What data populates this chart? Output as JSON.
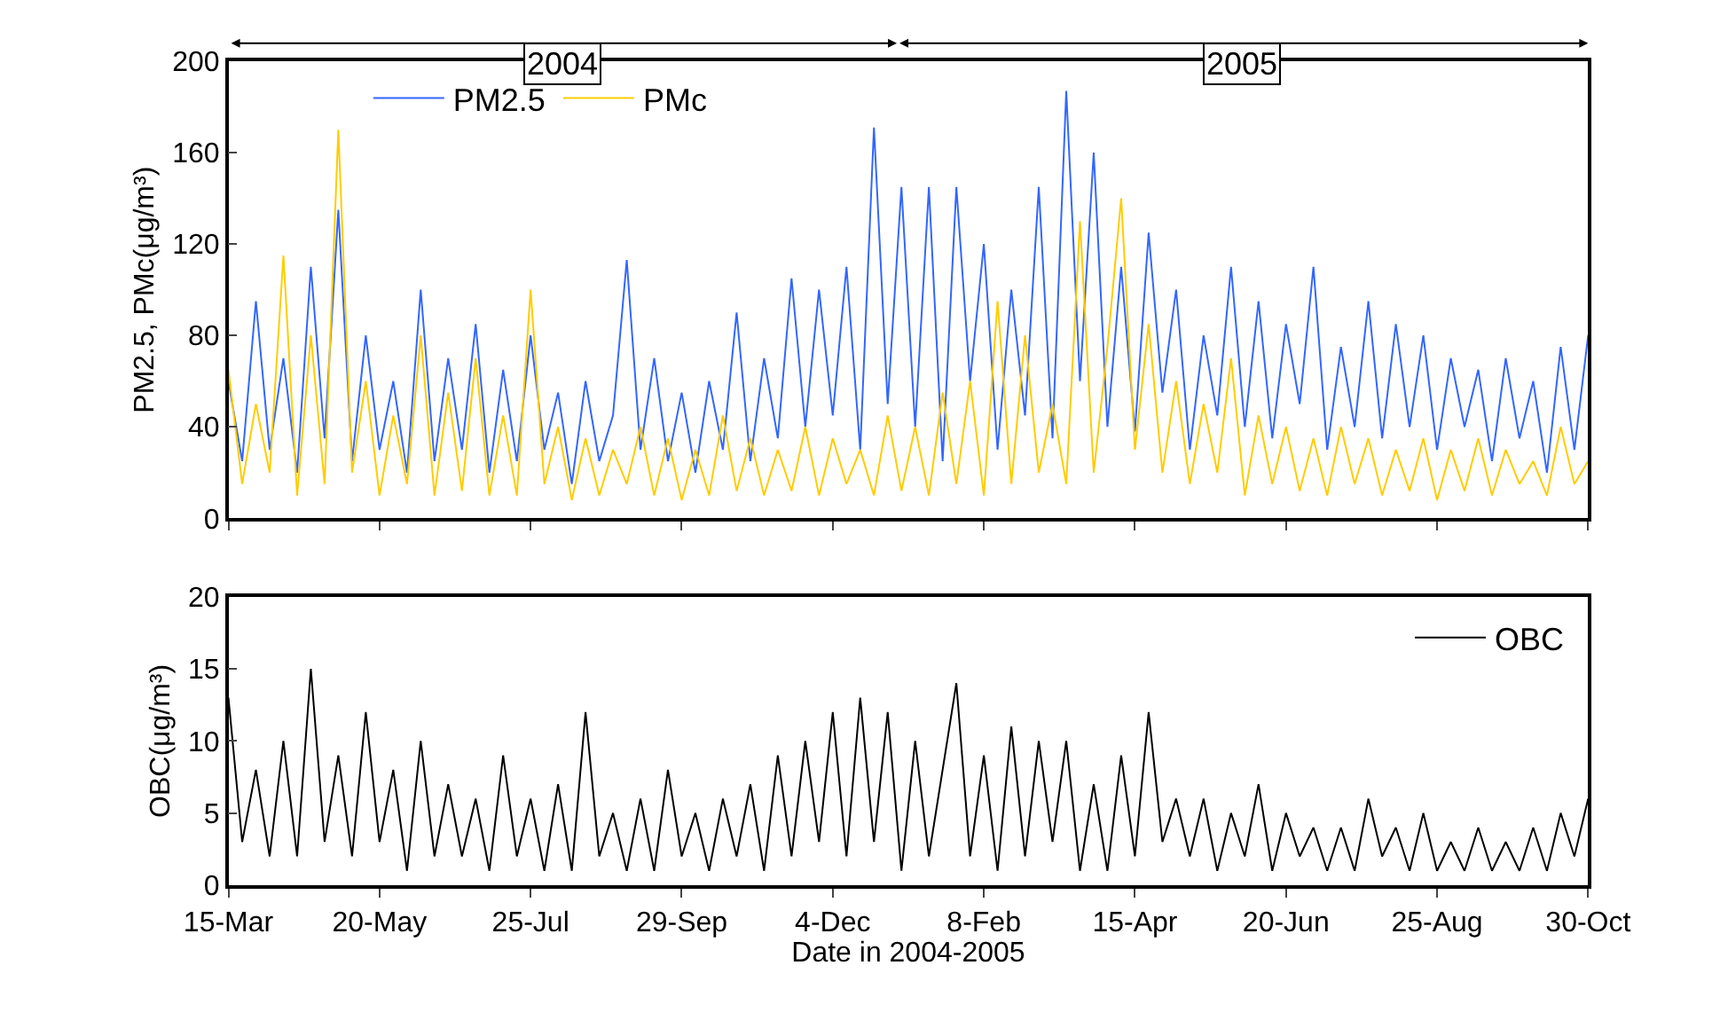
{
  "chart_data": [
    {
      "type": "line",
      "ylabel": "PM2.5, PMc(μg/m³)",
      "ylim": [
        0,
        200
      ],
      "yticks": [
        0,
        40,
        80,
        120,
        160,
        200
      ],
      "xlim": [
        "2004-03-15",
        "2005-10-30"
      ],
      "xticks": [
        {
          "value": "2004-03-15",
          "label": null
        },
        {
          "value": "2004-05-20",
          "label": null
        },
        {
          "value": "2004-07-25",
          "label": null
        },
        {
          "value": "2004-09-29",
          "label": null
        },
        {
          "value": "2004-12-04",
          "label": null
        },
        {
          "value": "2005-02-08",
          "label": null
        },
        {
          "value": "2005-04-15",
          "label": null
        },
        {
          "value": "2005-06-20",
          "label": null
        },
        {
          "value": "2005-08-25",
          "label": null
        },
        {
          "value": "2005-10-30",
          "label": null
        }
      ],
      "tick_labels": "y",
      "grid": false,
      "marker": "none",
      "line_style": "solid",
      "legend": "top left",
      "annotations": [
        "2004",
        "2005"
      ],
      "x": [
        "2004-03-15",
        "2004-03-21",
        "2004-03-27",
        "2004-04-02",
        "2004-04-08",
        "2004-04-14",
        "2004-04-20",
        "2004-04-26",
        "2004-05-02",
        "2004-05-08",
        "2004-05-14",
        "2004-05-20",
        "2004-05-26",
        "2004-06-01",
        "2004-06-07",
        "2004-06-13",
        "2004-06-19",
        "2004-06-25",
        "2004-07-01",
        "2004-07-07",
        "2004-07-13",
        "2004-07-19",
        "2004-07-25",
        "2004-07-31",
        "2004-08-06",
        "2004-08-12",
        "2004-08-18",
        "2004-08-24",
        "2004-08-30",
        "2004-09-05",
        "2004-09-11",
        "2004-09-17",
        "2004-09-23",
        "2004-09-29",
        "2004-10-05",
        "2004-10-11",
        "2004-10-17",
        "2004-10-23",
        "2004-10-29",
        "2004-11-04",
        "2004-11-10",
        "2004-11-16",
        "2004-11-22",
        "2004-11-28",
        "2004-12-04",
        "2004-12-10",
        "2004-12-16",
        "2004-12-22",
        "2004-12-28",
        "2005-01-03",
        "2005-01-09",
        "2005-01-15",
        "2005-01-21",
        "2005-01-27",
        "2005-02-02",
        "2005-02-08",
        "2005-02-14",
        "2005-02-20",
        "2005-02-26",
        "2005-03-04",
        "2005-03-10",
        "2005-03-16",
        "2005-03-22",
        "2005-03-28",
        "2005-04-03",
        "2005-04-09",
        "2005-04-15",
        "2005-04-21",
        "2005-04-27",
        "2005-05-03",
        "2005-05-09",
        "2005-05-15",
        "2005-05-21",
        "2005-05-27",
        "2005-06-02",
        "2005-06-08",
        "2005-06-14",
        "2005-06-20",
        "2005-06-26",
        "2005-07-02",
        "2005-07-08",
        "2005-07-14",
        "2005-07-20",
        "2005-07-26",
        "2005-08-01",
        "2005-08-07",
        "2005-08-13",
        "2005-08-19",
        "2005-08-25",
        "2005-08-31",
        "2005-09-06",
        "2005-09-12",
        "2005-09-18",
        "2005-09-24",
        "2005-09-30",
        "2005-10-06",
        "2005-10-12",
        "2005-10-18",
        "2005-10-24",
        "2005-10-30"
      ],
      "series": [
        {
          "name": "PM2.5",
          "color": "#3366ff",
          "values": [
            60,
            25,
            95,
            30,
            70,
            20,
            110,
            35,
            135,
            25,
            80,
            30,
            60,
            20,
            100,
            25,
            70,
            30,
            85,
            20,
            65,
            25,
            80,
            30,
            55,
            15,
            60,
            25,
            45,
            113,
            30,
            70,
            25,
            55,
            20,
            60,
            30,
            90,
            25,
            70,
            35,
            105,
            40,
            100,
            45,
            110,
            30,
            171,
            50,
            145,
            40,
            145,
            25,
            145,
            60,
            120,
            30,
            100,
            45,
            145,
            35,
            187,
            60,
            160,
            40,
            110,
            38,
            125,
            55,
            100,
            30,
            80,
            45,
            110,
            40,
            95,
            35,
            85,
            50,
            110,
            30,
            75,
            40,
            95,
            35,
            85,
            40,
            80,
            30,
            70,
            40,
            65,
            25,
            70,
            35,
            60,
            20,
            75,
            30,
            80
          ]
        },
        {
          "name": "PMc",
          "color": "#ffcc00",
          "values": [
            65,
            15,
            50,
            20,
            115,
            10,
            80,
            15,
            170,
            20,
            60,
            10,
            45,
            15,
            80,
            10,
            55,
            12,
            70,
            10,
            45,
            10,
            100,
            15,
            40,
            8,
            35,
            10,
            30,
            15,
            40,
            10,
            35,
            8,
            30,
            10,
            45,
            12,
            35,
            10,
            30,
            12,
            40,
            10,
            35,
            15,
            30,
            10,
            45,
            12,
            40,
            10,
            55,
            15,
            60,
            10,
            95,
            15,
            80,
            20,
            50,
            15,
            130,
            20,
            75,
            140,
            30,
            85,
            20,
            60,
            15,
            50,
            20,
            70,
            10,
            45,
            15,
            40,
            12,
            35,
            10,
            40,
            15,
            35,
            10,
            30,
            12,
            35,
            8,
            30,
            12,
            35,
            10,
            30,
            15,
            25,
            10,
            40,
            15,
            25
          ]
        }
      ]
    },
    {
      "type": "line",
      "xlabel": "Date in 2004-2005",
      "ylabel": "OBC(μg/m³)",
      "ylim": [
        0,
        20
      ],
      "yticks": [
        0,
        5,
        10,
        15,
        20
      ],
      "xlim": [
        "2004-03-15",
        "2005-10-30"
      ],
      "xticks": [
        {
          "value": "2004-03-15",
          "label": "15-Mar"
        },
        {
          "value": "2004-05-20",
          "label": "20-May"
        },
        {
          "value": "2004-07-25",
          "label": "25-Jul"
        },
        {
          "value": "2004-09-29",
          "label": "29-Sep"
        },
        {
          "value": "2004-12-04",
          "label": "4-Dec"
        },
        {
          "value": "2005-02-08",
          "label": "8-Feb"
        },
        {
          "value": "2005-04-15",
          "label": "15-Apr"
        },
        {
          "value": "2005-06-20",
          "label": "20-Jun"
        },
        {
          "value": "2005-08-25",
          "label": "25-Aug"
        },
        {
          "value": "2005-10-30",
          "label": "30-Oct"
        }
      ],
      "grid": false,
      "marker": "none",
      "line_style": "solid",
      "legend": "top right",
      "x": [
        "2004-03-15",
        "2004-03-21",
        "2004-03-27",
        "2004-04-02",
        "2004-04-08",
        "2004-04-14",
        "2004-04-20",
        "2004-04-26",
        "2004-05-02",
        "2004-05-08",
        "2004-05-14",
        "2004-05-20",
        "2004-05-26",
        "2004-06-01",
        "2004-06-07",
        "2004-06-13",
        "2004-06-19",
        "2004-06-25",
        "2004-07-01",
        "2004-07-07",
        "2004-07-13",
        "2004-07-19",
        "2004-07-25",
        "2004-07-31",
        "2004-08-06",
        "2004-08-12",
        "2004-08-18",
        "2004-08-24",
        "2004-08-30",
        "2004-09-05",
        "2004-09-11",
        "2004-09-17",
        "2004-09-23",
        "2004-09-29",
        "2004-10-05",
        "2004-10-11",
        "2004-10-17",
        "2004-10-23",
        "2004-10-29",
        "2004-11-04",
        "2004-11-10",
        "2004-11-16",
        "2004-11-22",
        "2004-11-28",
        "2004-12-04",
        "2004-12-10",
        "2004-12-16",
        "2004-12-22",
        "2004-12-28",
        "2005-01-03",
        "2005-01-09",
        "2005-01-15",
        "2005-01-21",
        "2005-01-27",
        "2005-02-02",
        "2005-02-08",
        "2005-02-14",
        "2005-02-20",
        "2005-02-26",
        "2005-03-04",
        "2005-03-10",
        "2005-03-16",
        "2005-03-22",
        "2005-03-28",
        "2005-04-03",
        "2005-04-09",
        "2005-04-15",
        "2005-04-21",
        "2005-04-27",
        "2005-05-03",
        "2005-05-09",
        "2005-05-15",
        "2005-05-21",
        "2005-05-27",
        "2005-06-02",
        "2005-06-08",
        "2005-06-14",
        "2005-06-20",
        "2005-06-26",
        "2005-07-02",
        "2005-07-08",
        "2005-07-14",
        "2005-07-20",
        "2005-07-26",
        "2005-08-01",
        "2005-08-07",
        "2005-08-13",
        "2005-08-19",
        "2005-08-25",
        "2005-08-31",
        "2005-09-06",
        "2005-09-12",
        "2005-09-18",
        "2005-09-24",
        "2005-09-30",
        "2005-10-06",
        "2005-10-12",
        "2005-10-18",
        "2005-10-24",
        "2005-10-30"
      ],
      "series": [
        {
          "name": "OBC",
          "color": "#000000",
          "values": [
            13,
            3,
            8,
            2,
            10,
            2,
            15,
            3,
            9,
            2,
            12,
            3,
            8,
            1,
            10,
            2,
            7,
            2,
            6,
            1,
            9,
            2,
            6,
            1,
            7,
            1,
            12,
            2,
            5,
            1,
            6,
            1,
            8,
            2,
            5,
            1,
            6,
            2,
            7,
            1,
            9,
            2,
            10,
            3,
            12,
            2,
            13,
            3,
            12,
            1,
            10,
            2,
            8,
            14,
            2,
            9,
            1,
            11,
            2,
            10,
            3,
            10,
            1,
            7,
            1,
            9,
            2,
            12,
            3,
            6,
            2,
            6,
            1,
            5,
            2,
            7,
            1,
            5,
            2,
            4,
            1,
            4,
            1,
            6,
            2,
            4,
            1,
            5,
            1,
            3,
            1,
            4,
            1,
            3,
            1,
            4,
            1,
            5,
            2,
            6
          ]
        }
      ]
    }
  ]
}
